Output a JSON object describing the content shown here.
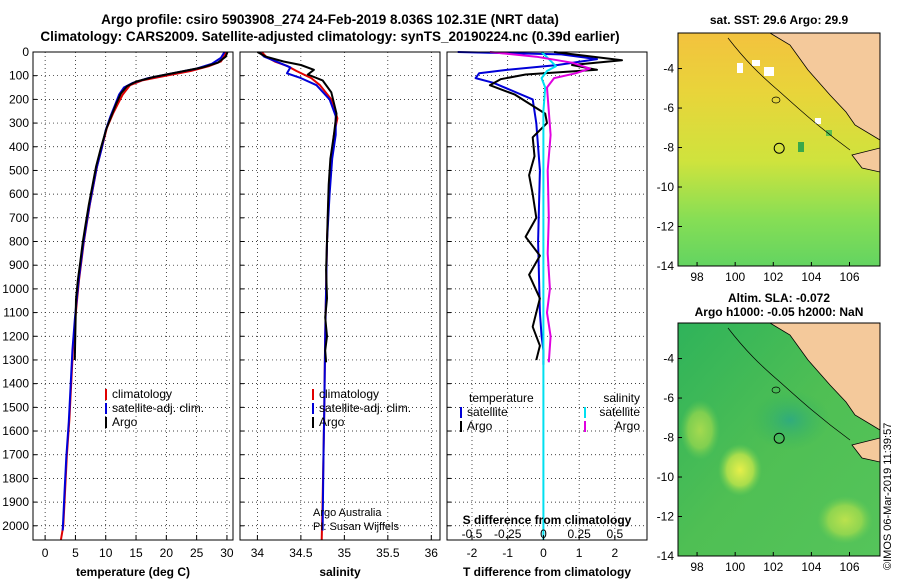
{
  "header": {
    "line1": "Argo profile: csiro 5903908_274 24-Feb-2019 8.036S 102.31E (NRT data)",
    "line2": "Climatology: CARS2009. Satellite-adjusted climatology: synTS_20190224.nc (0.39d earlier)"
  },
  "credit": "©IMOS 06-Mar-2019 11:39:57",
  "colors": {
    "red": "#e00000",
    "blue": "#0000d8",
    "black": "#000000",
    "magenta": "#e000e0",
    "cyan": "#00e0f0"
  },
  "chart_data": [
    {
      "type": "line",
      "name": "temperature-panel",
      "xlabel": "temperature (deg C)",
      "ylabel": "",
      "xlim": [
        -2,
        31
      ],
      "ylim": [
        2060,
        0
      ],
      "xticks": [
        0,
        5,
        10,
        15,
        20,
        25,
        30
      ],
      "xtick_labels": [
        "0",
        "5",
        "10",
        "15",
        "20",
        "25",
        "30"
      ],
      "yticks": [
        0,
        100,
        200,
        300,
        400,
        500,
        600,
        700,
        800,
        900,
        1000,
        1100,
        1200,
        1300,
        1400,
        1500,
        1600,
        1700,
        1800,
        1900,
        2000
      ],
      "ytick_labels": [
        "0",
        "100",
        "200",
        "300",
        "400",
        "500",
        "600",
        "700",
        "800",
        "900",
        "1000",
        "1100",
        "1200",
        "1300",
        "1400",
        "1500",
        "1600",
        "1700",
        "1800",
        "1900",
        "2000"
      ],
      "legend": [
        "climatology",
        "satellite-adj. clim.",
        "Argo"
      ],
      "series": [
        {
          "name": "climatology",
          "color": "red",
          "x": [
            29.8,
            29.5,
            29.0,
            27.0,
            24.0,
            20.0,
            16.0,
            14.0,
            12.8,
            12.0,
            11.2,
            10.2,
            9.4,
            8.6,
            8.0,
            7.4,
            6.9,
            6.4,
            6.0,
            5.6,
            5.3,
            5.0,
            4.6,
            4.3,
            4.0,
            3.6,
            3.3,
            3.0,
            2.6
          ],
          "y": [
            0,
            20,
            40,
            60,
            80,
            100,
            120,
            140,
            180,
            220,
            260,
            320,
            400,
            480,
            560,
            640,
            720,
            800,
            880,
            960,
            1040,
            1120,
            1250,
            1400,
            1550,
            1700,
            1850,
            2000,
            2060
          ]
        },
        {
          "name": "satellite-adj. clim.",
          "color": "blue",
          "x": [
            29.6,
            29.0,
            27.5,
            25.0,
            21.0,
            17.0,
            14.5,
            13.0,
            12.2,
            11.6,
            10.8,
            10.0,
            9.3,
            8.5,
            7.9,
            7.3,
            6.8,
            6.3,
            5.9,
            5.5,
            5.2,
            4.9,
            4.5,
            4.2,
            3.9,
            3.5,
            3.2,
            2.9
          ],
          "y": [
            0,
            25,
            50,
            70,
            90,
            110,
            130,
            150,
            180,
            220,
            270,
            330,
            410,
            490,
            570,
            650,
            730,
            810,
            890,
            970,
            1050,
            1130,
            1260,
            1410,
            1560,
            1710,
            1860,
            2020
          ]
        },
        {
          "name": "Argo",
          "color": "black",
          "x": [
            30.1,
            29.8,
            28.5,
            26.0,
            22.0,
            18.0,
            15.0,
            13.5,
            12.5,
            11.8,
            11.0,
            10.1,
            9.2,
            8.4,
            7.8,
            7.2,
            6.7,
            6.2,
            5.8,
            5.4,
            5.1,
            4.9
          ],
          "y": [
            0,
            20,
            45,
            65,
            85,
            105,
            125,
            145,
            175,
            215,
            265,
            325,
            405,
            485,
            565,
            645,
            725,
            805,
            885,
            965,
            1045,
            1300
          ]
        }
      ]
    },
    {
      "type": "line",
      "name": "salinity-panel",
      "xlabel": "salinity",
      "xlim": [
        33.8,
        36.1
      ],
      "ylim": [
        2060,
        0
      ],
      "xticks": [
        34,
        34.5,
        35,
        35.5,
        36
      ],
      "xtick_labels": [
        "34",
        "34.5",
        "35",
        "35.5",
        "36"
      ],
      "legend": [
        "climatology",
        "satellite-adj. clim.",
        "Argo"
      ],
      "annotations": [
        "Argo Australia",
        "PI: Susan Wijffels"
      ],
      "series": [
        {
          "name": "climatology",
          "color": "red",
          "x": [
            34.05,
            34.1,
            34.2,
            34.35,
            34.45,
            34.62,
            34.72,
            34.85,
            34.92,
            34.88,
            34.85,
            34.82,
            34.8,
            34.79,
            34.78,
            34.77,
            34.76,
            34.75,
            34.74
          ],
          "y": [
            0,
            20,
            40,
            60,
            80,
            110,
            140,
            200,
            280,
            350,
            450,
            600,
            800,
            1000,
            1200,
            1500,
            1700,
            1900,
            2060
          ]
        },
        {
          "name": "satellite-adj. clim.",
          "color": "blue",
          "x": [
            34.02,
            34.08,
            34.25,
            34.38,
            34.34,
            34.5,
            34.68,
            34.83,
            34.9,
            34.9,
            34.86,
            34.83,
            34.8,
            34.79,
            34.78,
            34.77,
            34.76,
            34.75
          ],
          "y": [
            0,
            20,
            45,
            65,
            90,
            110,
            140,
            200,
            270,
            350,
            450,
            600,
            800,
            1000,
            1200,
            1500,
            1700,
            2020
          ]
        },
        {
          "name": "Argo",
          "color": "black",
          "x": [
            34.0,
            34.1,
            34.3,
            34.5,
            34.65,
            34.58,
            34.75,
            34.85,
            34.91,
            34.88,
            34.84,
            34.82,
            34.81,
            34.8,
            34.79,
            34.8,
            34.78,
            34.8,
            34.78,
            34.79
          ],
          "y": [
            0,
            20,
            40,
            55,
            75,
            95,
            120,
            170,
            260,
            350,
            450,
            560,
            680,
            800,
            920,
            1040,
            1120,
            1200,
            1260,
            1310
          ]
        }
      ]
    },
    {
      "type": "line",
      "name": "difference-panel",
      "xlabel": "T difference from climatology",
      "xlabel_top": "S difference from climatology",
      "xlim": [
        -2.7,
        2.9
      ],
      "ylim": [
        2060,
        0
      ],
      "xticks": [
        -2,
        -1,
        0,
        1,
        2
      ],
      "xtick_labels": [
        "-2",
        "-1",
        "0",
        "1",
        "2"
      ],
      "sticks": [
        -0.5,
        -0.25,
        0,
        0.25,
        0.5
      ],
      "stick_labels": [
        "-0.5",
        "-0.25",
        "0",
        "0.25",
        "0.5"
      ],
      "legend_left_title": "temperature",
      "legend_right_title": "salinity",
      "legend": [
        "satellite",
        "Argo",
        "satellite",
        "Argo"
      ],
      "series": [
        {
          "name": "temperature satellite",
          "color": "blue",
          "x": [
            -2.4,
            0.5,
            1.5,
            0.4,
            -1.0,
            -1.8,
            -1.9,
            -1.4,
            -0.3,
            -0.2,
            -0.1,
            -0.15,
            -0.1,
            -0.05,
            0.0,
            0.0
          ],
          "y": [
            0,
            10,
            30,
            55,
            75,
            90,
            110,
            130,
            200,
            300,
            500,
            800,
            1100,
            1200,
            1260,
            1320
          ]
        },
        {
          "name": "temperature Argo",
          "color": "black",
          "x": [
            0.3,
            2.2,
            0.8,
            1.5,
            -0.5,
            -1.2,
            -1.5,
            -0.8,
            0.05,
            0.1,
            -0.3,
            -0.25,
            -0.4,
            -0.3,
            -0.2,
            -0.5,
            -0.1,
            -0.4,
            -0.1,
            -0.3,
            -0.1,
            -0.2
          ],
          "y": [
            0,
            35,
            55,
            75,
            95,
            115,
            140,
            180,
            260,
            300,
            360,
            440,
            520,
            600,
            700,
            780,
            860,
            940,
            1040,
            1160,
            1240,
            1300
          ]
        },
        {
          "name": "salinity satellite",
          "color": "cyan",
          "x": [
            -0.05,
            0.15,
            0.35,
            0.1,
            -0.05,
            0.05,
            0.0,
            0.0,
            0.0,
            0.0,
            0.0
          ],
          "y": [
            0,
            30,
            60,
            80,
            110,
            150,
            250,
            600,
            1100,
            1600,
            2060
          ]
        },
        {
          "name": "salinity Argo",
          "color": "magenta",
          "x": [
            -1.5,
            -0.2,
            0.8,
            1.3,
            0.9,
            0.3,
            0.1,
            0.15,
            0.2,
            0.12,
            0.15,
            0.12,
            0.18,
            0.1,
            0.2,
            0.15
          ],
          "y": [
            0,
            20,
            45,
            70,
            90,
            110,
            150,
            250,
            350,
            500,
            700,
            850,
            1000,
            1100,
            1200,
            1310
          ]
        }
      ]
    },
    {
      "type": "heatmap",
      "name": "sst-map",
      "title": "sat. SST: 29.6 Argo: 29.9",
      "xlim": [
        97,
        107.6
      ],
      "ylim": [
        -14,
        -2.2
      ],
      "xticks": [
        98,
        100,
        102,
        104,
        106
      ],
      "xtick_labels": [
        "98",
        "100",
        "102",
        "104",
        "106"
      ],
      "yticks": [
        -4,
        -6,
        -8,
        -10,
        -12,
        -14
      ],
      "ytick_labels": [
        "-4",
        "-6",
        "-8",
        "-10",
        "-12",
        "-14"
      ],
      "argo_position": {
        "lon": 102.31,
        "lat": -8.036
      }
    },
    {
      "type": "heatmap",
      "name": "sla-map",
      "title": "Altim. SLA: -0.072",
      "subtitle": "Argo h1000: -0.05 h2000: NaN",
      "xlim": [
        97,
        107.6
      ],
      "ylim": [
        -14,
        -2.2
      ],
      "xticks": [
        98,
        100,
        102,
        104,
        106
      ],
      "xtick_labels": [
        "98",
        "100",
        "102",
        "104",
        "106"
      ],
      "yticks": [
        -4,
        -6,
        -8,
        -10,
        -12,
        -14
      ],
      "ytick_labels": [
        "-4",
        "-6",
        "-8",
        "-10",
        "-12",
        "-14"
      ],
      "argo_position": {
        "lon": 102.31,
        "lat": -8.036
      }
    }
  ]
}
